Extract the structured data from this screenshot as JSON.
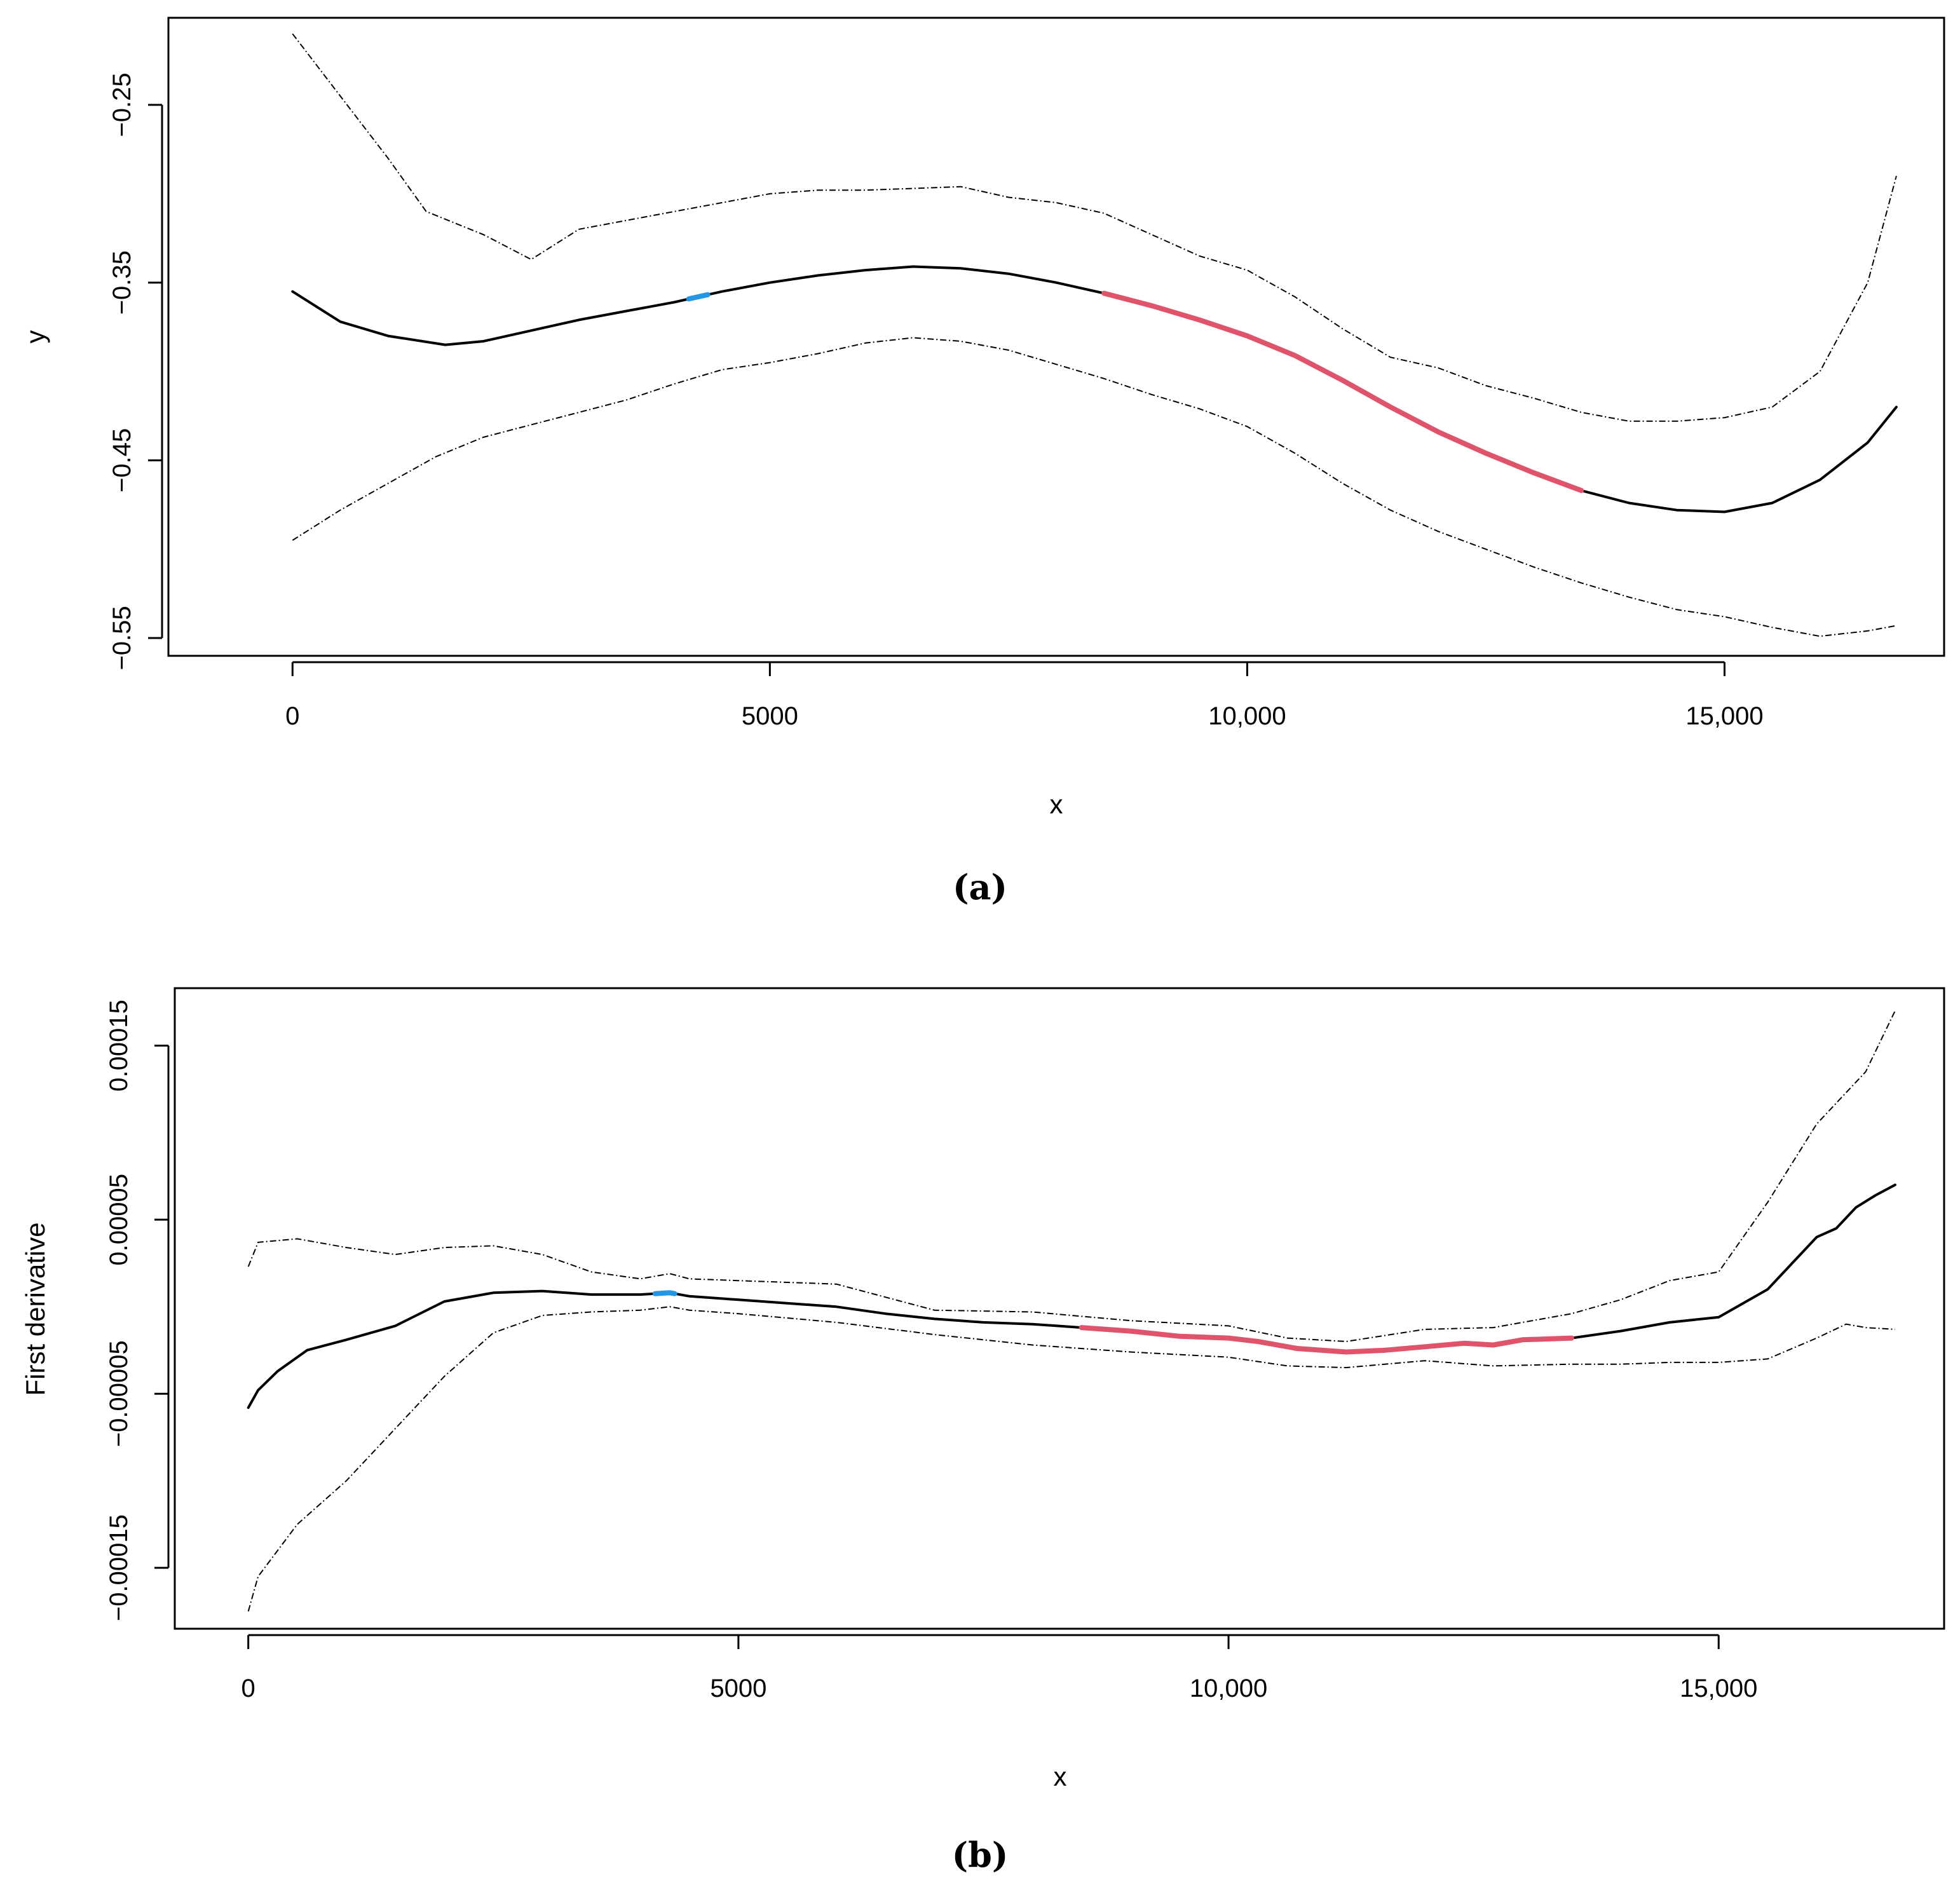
{
  "colors": {
    "line": "#000000",
    "increase": "#2297E6",
    "decrease": "#DF536B",
    "background": "#FFFFFF"
  },
  "chart_data": [
    {
      "type": "line",
      "panel_label": "(a)",
      "title": "",
      "xlabel": "x",
      "ylabel": "y",
      "xlim": [
        -1300,
        17300
      ],
      "ylim": [
        -0.56,
        -0.201
      ],
      "xticks": [
        0,
        5000,
        10000,
        15000
      ],
      "xtick_labels": [
        "0",
        "5000",
        "10,000",
        "15,000"
      ],
      "yticks": [
        -0.25,
        -0.35,
        -0.45,
        -0.55
      ],
      "ytick_labels": [
        "−0.25",
        "−0.35",
        "−0.45",
        "−0.55"
      ],
      "series": [
        {
          "name": "fit",
          "x": [
            0,
            500,
            1000,
            1600,
            2000,
            2500,
            3000,
            3500,
            4000,
            4500,
            5000,
            5500,
            6000,
            6500,
            7000,
            7500,
            8000,
            8500,
            9000,
            9500,
            10000,
            10500,
            11000,
            11500,
            12000,
            12500,
            13000,
            13500,
            14000,
            14500,
            15000,
            15500,
            16000,
            16500,
            16800
          ],
          "y": [
            -0.355,
            -0.372,
            -0.38,
            -0.385,
            -0.383,
            -0.377,
            -0.371,
            -0.366,
            -0.361,
            -0.355,
            -0.35,
            -0.346,
            -0.343,
            -0.341,
            -0.342,
            -0.345,
            -0.35,
            -0.356,
            -0.363,
            -0.371,
            -0.38,
            -0.391,
            -0.405,
            -0.42,
            -0.434,
            -0.446,
            -0.457,
            -0.467,
            -0.474,
            -0.478,
            -0.479,
            -0.474,
            -0.461,
            -0.44,
            -0.42
          ]
        },
        {
          "name": "upper confidence band",
          "x": [
            0,
            500,
            1000,
            1400,
            2000,
            2500,
            3000,
            3500,
            4000,
            4500,
            5000,
            5500,
            6000,
            6500,
            7000,
            7500,
            8000,
            8500,
            9000,
            9500,
            10000,
            10500,
            11000,
            11500,
            12000,
            12500,
            13000,
            13500,
            14000,
            14500,
            15000,
            15500,
            16000,
            16500,
            16800
          ],
          "y": [
            -0.21,
            -0.245,
            -0.28,
            -0.31,
            -0.323,
            -0.337,
            -0.32,
            -0.315,
            -0.31,
            -0.305,
            -0.3,
            -0.298,
            -0.298,
            -0.297,
            -0.296,
            -0.302,
            -0.305,
            -0.311,
            -0.323,
            -0.335,
            -0.343,
            -0.358,
            -0.376,
            -0.392,
            -0.398,
            -0.408,
            -0.415,
            -0.423,
            -0.428,
            -0.428,
            -0.426,
            -0.42,
            -0.4,
            -0.35,
            -0.29
          ]
        },
        {
          "name": "lower confidence band",
          "x": [
            0,
            500,
            1000,
            1500,
            2000,
            2500,
            3000,
            3500,
            4000,
            4500,
            5000,
            5500,
            6000,
            6500,
            7000,
            7500,
            8000,
            8500,
            9000,
            9500,
            10000,
            10500,
            11000,
            11500,
            12000,
            12500,
            13000,
            13500,
            14000,
            14500,
            15000,
            15500,
            16000,
            16500,
            16800
          ],
          "y": [
            -0.495,
            -0.478,
            -0.463,
            -0.448,
            -0.437,
            -0.43,
            -0.423,
            -0.416,
            -0.407,
            -0.399,
            -0.395,
            -0.39,
            -0.384,
            -0.381,
            -0.383,
            -0.388,
            -0.396,
            -0.404,
            -0.413,
            -0.421,
            -0.431,
            -0.446,
            -0.463,
            -0.478,
            -0.49,
            -0.5,
            -0.51,
            -0.519,
            -0.527,
            -0.534,
            -0.538,
            -0.544,
            -0.549,
            -0.546,
            -0.543
          ]
        }
      ],
      "highlights": [
        {
          "name": "significant increase",
          "color_key": "increase",
          "x_range": [
            4150,
            4350
          ]
        },
        {
          "name": "significant decrease",
          "color_key": "decrease",
          "x_range": [
            8500,
            13500
          ]
        }
      ]
    },
    {
      "type": "line",
      "panel_label": "(b)",
      "title": "",
      "xlabel": "x",
      "ylabel": "First derivative",
      "xlim": [
        -750,
        17300
      ],
      "ylim": [
        -0.000185,
        0.000183
      ],
      "xticks": [
        0,
        5000,
        10000,
        15000
      ],
      "xtick_labels": [
        "0",
        "5000",
        "10,000",
        "15,000"
      ],
      "yticks": [
        0.00015,
        5e-05,
        -5e-05,
        -0.00015
      ],
      "ytick_labels": [
        "0.00015",
        "0.00005",
        "−0.00005",
        "−0.00015"
      ],
      "series": [
        {
          "name": "first derivative",
          "x": [
            0,
            100,
            300,
            600,
            1000,
            1500,
            2000,
            2500,
            3000,
            3500,
            4000,
            4300,
            4500,
            5000,
            6000,
            6500,
            7000,
            7500,
            8000,
            8500,
            9000,
            9500,
            10000,
            10300,
            10700,
            11200,
            11600,
            12000,
            12400,
            12700,
            13000,
            13500,
            14000,
            14500,
            15000,
            15500,
            16000,
            16200,
            16400,
            16600,
            16800
          ],
          "y": [
            -5.8e-05,
            -4.8e-05,
            -3.7e-05,
            -2.5e-05,
            -1.9e-05,
            -1.1e-05,
            3e-06,
            8e-06,
            9e-06,
            7e-06,
            7e-06,
            8e-06,
            6e-06,
            4e-06,
            0.0,
            -4e-06,
            -7e-06,
            -9e-06,
            -1e-05,
            -1.2e-05,
            -1.4e-05,
            -1.7e-05,
            -1.8e-05,
            -2e-05,
            -2.4e-05,
            -2.6e-05,
            -2.5e-05,
            -2.3e-05,
            -2.1e-05,
            -2.2e-05,
            -1.9e-05,
            -1.8e-05,
            -1.4e-05,
            -9e-06,
            -6e-06,
            1e-05,
            4e-05,
            4.5e-05,
            5.7e-05,
            6.4e-05,
            7e-05
          ]
        },
        {
          "name": "upper confidence band",
          "x": [
            0,
            100,
            500,
            1000,
            1500,
            2000,
            2500,
            3000,
            3500,
            4000,
            4300,
            4500,
            5000,
            6000,
            7000,
            8000,
            9000,
            10000,
            10600,
            11200,
            12000,
            12700,
            13500,
            14000,
            14500,
            15000,
            15500,
            16000,
            16500,
            16800
          ],
          "y": [
            2.3e-05,
            3.7e-05,
            3.9e-05,
            3.4e-05,
            3e-05,
            3.4e-05,
            3.5e-05,
            3e-05,
            2e-05,
            1.6e-05,
            1.9e-05,
            1.6e-05,
            1.5e-05,
            1.3e-05,
            -2e-06,
            -3e-06,
            -8e-06,
            -1.1e-05,
            -1.8e-05,
            -2e-05,
            -1.3e-05,
            -1.2e-05,
            -4e-06,
            4e-06,
            1.5e-05,
            2e-05,
            6e-05,
            0.000105,
            0.000135,
            0.00017
          ]
        },
        {
          "name": "lower confidence band",
          "x": [
            0,
            100,
            500,
            1000,
            1500,
            2000,
            2500,
            3000,
            3500,
            4000,
            4300,
            4500,
            5000,
            6000,
            7000,
            8000,
            9000,
            10000,
            10600,
            11200,
            12000,
            12700,
            13500,
            14000,
            14500,
            15000,
            15500,
            16000,
            16300,
            16500,
            16800
          ],
          "y": [
            -0.000175,
            -0.000155,
            -0.000125,
            -0.0001,
            -7e-05,
            -4e-05,
            -1.5e-05,
            -5e-06,
            -3e-06,
            -2e-06,
            0.0,
            -2e-06,
            -4e-06,
            -9e-06,
            -1.6e-05,
            -2.2e-05,
            -2.6e-05,
            -2.9e-05,
            -3.4e-05,
            -3.5e-05,
            -3.1e-05,
            -3.4e-05,
            -3.3e-05,
            -3.3e-05,
            -3.2e-05,
            -3.2e-05,
            -3e-05,
            -1.8e-05,
            -1e-05,
            -1.2e-05,
            -1.3e-05
          ]
        }
      ],
      "highlights": [
        {
          "name": "significant increase",
          "color_key": "increase",
          "x_range": [
            4150,
            4350
          ]
        },
        {
          "name": "significant decrease",
          "color_key": "decrease",
          "x_range": [
            8500,
            13500
          ]
        }
      ]
    }
  ]
}
